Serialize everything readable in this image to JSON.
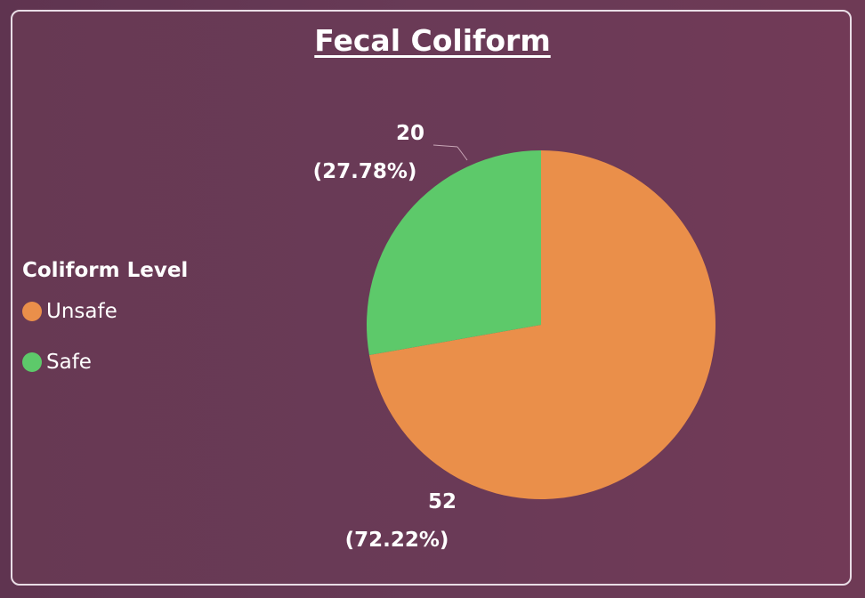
{
  "chart_data": {
    "type": "pie",
    "title": "Fecal Coliform",
    "legend_title": "Coliform Level",
    "legend_position": "left",
    "slices": [
      {
        "name": "Unsafe",
        "value": 52,
        "percent": "72.22%",
        "label_value": "52",
        "label_percent": "(72.22%)",
        "color": "#ea8f4a"
      },
      {
        "name": "Safe",
        "value": 20,
        "percent": "27.78%",
        "label_value": "20",
        "label_percent": "(27.78%)",
        "color": "#5dc96a"
      }
    ]
  }
}
